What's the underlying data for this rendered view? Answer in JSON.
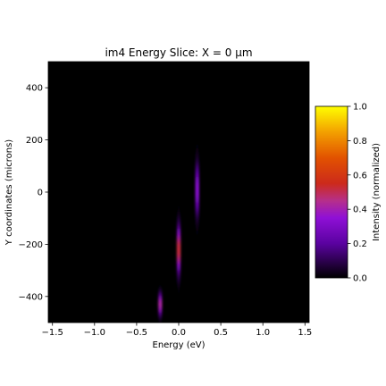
{
  "chart_data": {
    "type": "heatmap",
    "title": "im4 Energy Slice: X = 0 µm",
    "xlabel": "Energy (eV)",
    "ylabel": "Y coordinates (microns)",
    "xlim": [
      -1.55,
      1.55
    ],
    "ylim": [
      -500,
      500
    ],
    "x_ticks": [
      "−1.5",
      "−1.0",
      "−0.5",
      "0.0",
      "0.5",
      "1.0",
      "1.5"
    ],
    "x_tick_values": [
      -1.5,
      -1.0,
      -0.5,
      0.0,
      0.5,
      1.0,
      1.5
    ],
    "y_ticks": [
      "−400",
      "−200",
      "0",
      "200",
      "400"
    ],
    "y_tick_values": [
      -400,
      -200,
      0,
      200,
      400
    ],
    "colormap": "gnuplot",
    "background_color": "#000000",
    "colorbar": {
      "label": "Intensity (normalized)",
      "range": [
        0.0,
        1.0
      ],
      "ticks": [
        "0.0",
        "0.2",
        "0.4",
        "0.6",
        "0.8",
        "1.0"
      ],
      "tick_values": [
        0.0,
        0.2,
        0.4,
        0.6,
        0.8,
        1.0
      ]
    },
    "features": [
      {
        "energy": -0.22,
        "y_center": -430,
        "y_halfwidth": 80,
        "peak": 0.45
      },
      {
        "energy": 0.0,
        "y_center": -220,
        "y_halfwidth": 180,
        "peak": 0.55
      },
      {
        "energy": 0.22,
        "y_center": 10,
        "y_halfwidth": 200,
        "peak": 0.35
      }
    ]
  }
}
